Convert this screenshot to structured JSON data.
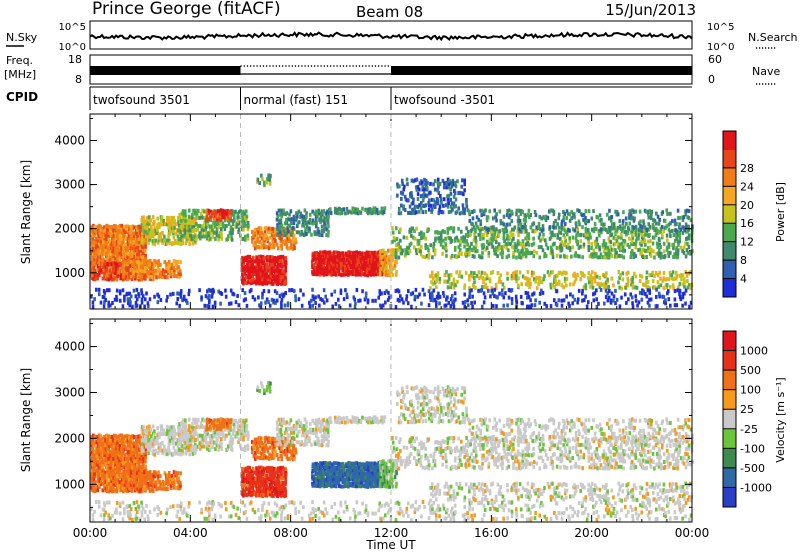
{
  "header": {
    "station": "Prince George (fitACF)",
    "beam": "Beam 08",
    "date": "15/Jun/2013"
  },
  "chart_data": [
    {
      "type": "line",
      "name": "noise-panel",
      "left_label": "N.Sky",
      "right_label": "N.Search",
      "left_ticks": [
        "10^5",
        "10^0"
      ],
      "right_ticks": [
        "10^5",
        "10^0"
      ]
    },
    {
      "type": "line",
      "name": "frequency-panel",
      "left_label_line1": "Freq.",
      "left_label_line2": "[MHz]",
      "right_label": "Nave",
      "left_ticks": [
        18,
        8
      ],
      "right_ticks": [
        60,
        0
      ],
      "freq_segments": [
        {
          "start_hr": 0,
          "end_hr": 6,
          "style": "solid"
        },
        {
          "start_hr": 6,
          "end_hr": 12,
          "style": "dotted"
        },
        {
          "start_hr": 12,
          "end_hr": 24,
          "style": "solid"
        }
      ]
    },
    {
      "type": "table",
      "name": "cpid-strip",
      "label": "CPID",
      "segments": [
        {
          "start_hr": 0,
          "end_hr": 6,
          "label": "twofsound 3501"
        },
        {
          "start_hr": 6,
          "end_hr": 12,
          "label": "normal (fast) 151"
        },
        {
          "start_hr": 12,
          "end_hr": 24,
          "label": "twofsound -3501"
        }
      ]
    },
    {
      "type": "heatmap",
      "name": "power",
      "ylabel": "Slant Range [km]",
      "yticks": [
        1000,
        2000,
        3000,
        4000
      ],
      "ylim": [
        180,
        4600
      ],
      "colorbar": {
        "label": "Power [dB]",
        "ticks": [
          4,
          8,
          12,
          16,
          20,
          24,
          28
        ],
        "colors": [
          "#1f2fd8",
          "#2e5fb0",
          "#3f8a6c",
          "#4aa84e",
          "#c7c21a",
          "#f5a623",
          "#f07d18",
          "#e8441a",
          "#e0141a"
        ]
      }
    },
    {
      "type": "heatmap",
      "name": "velocity",
      "ylabel": "Slant Range [km]",
      "yticks": [
        1000,
        2000,
        3000,
        4000
      ],
      "ylim": [
        180,
        4600
      ],
      "xlabel": "Time UT",
      "xticks": [
        "00:00",
        "04:00",
        "08:00",
        "12:00",
        "16:00",
        "20:00",
        "00:00"
      ],
      "xlim_hours": [
        0,
        24
      ],
      "colorbar": {
        "label": "Velocity [m s⁻¹]",
        "ticks": [
          "1000",
          "500",
          "100",
          "25",
          "-25",
          "-100",
          "-500",
          "-1000"
        ],
        "colors": [
          "#2a3fc8",
          "#2e6aa5",
          "#3e8a4f",
          "#6bc43c",
          "#c9c9c9",
          "#f59a1a",
          "#f07018",
          "#e8311a",
          "#e0141a"
        ]
      }
    }
  ]
}
